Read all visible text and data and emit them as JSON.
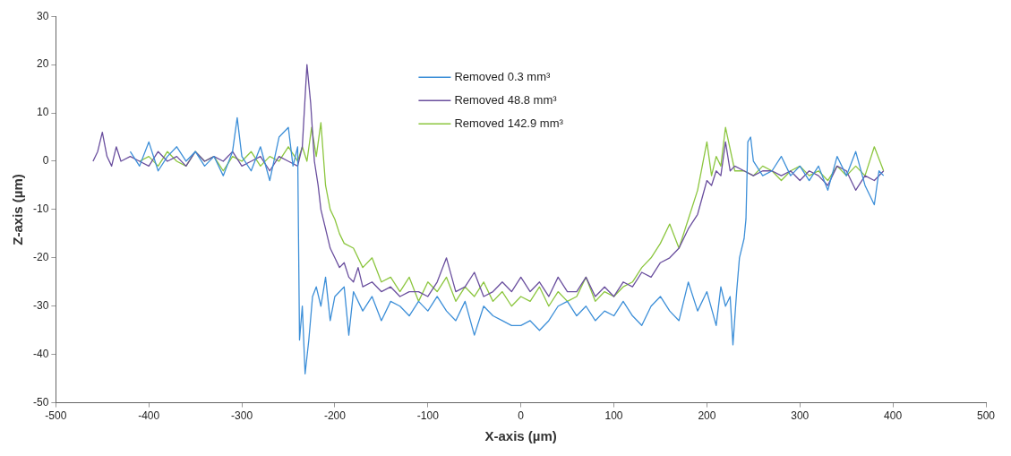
{
  "chart_data": {
    "type": "line",
    "xlabel": "X-axis (µm)",
    "ylabel": "Z-axis (µm)",
    "xlim": [
      -500,
      500
    ],
    "xticks": [
      -500,
      -400,
      -300,
      -200,
      -100,
      0,
      100,
      200,
      300,
      400,
      500
    ],
    "ylim": [
      -50,
      30
    ],
    "yticks": [
      -50,
      -40,
      -30,
      -20,
      -10,
      0,
      10,
      20,
      30
    ],
    "grid": false,
    "legend": "top",
    "marker": "none",
    "line_style": "solid",
    "series": [
      {
        "name": "Removed 0.3 mm³",
        "color": "#3d8fd8",
        "x": [
          -420,
          -410,
          -400,
          -390,
          -380,
          -370,
          -360,
          -350,
          -340,
          -330,
          -320,
          -310,
          -305,
          -300,
          -290,
          -280,
          -270,
          -260,
          -250,
          -245,
          -240,
          -238,
          -235,
          -232,
          -228,
          -224,
          -220,
          -215,
          -210,
          -205,
          -200,
          -190,
          -185,
          -180,
          -170,
          -160,
          -150,
          -140,
          -130,
          -120,
          -110,
          -100,
          -90,
          -80,
          -70,
          -60,
          -50,
          -40,
          -30,
          -20,
          -10,
          0,
          10,
          20,
          30,
          40,
          50,
          60,
          70,
          80,
          90,
          100,
          110,
          120,
          130,
          140,
          150,
          160,
          170,
          180,
          190,
          200,
          210,
          215,
          220,
          225,
          228,
          232,
          235,
          240,
          242,
          244,
          247,
          250,
          260,
          270,
          280,
          290,
          300,
          310,
          320,
          330,
          340,
          350,
          360,
          370,
          380,
          385,
          390
        ],
        "values": [
          2,
          -1,
          4,
          -2,
          1,
          3,
          0,
          2,
          -1,
          1,
          -3,
          2,
          9,
          1,
          -2,
          3,
          -4,
          5,
          7,
          -1,
          3,
          -37,
          -30,
          -44,
          -37,
          -28,
          -26,
          -30,
          -24,
          -33,
          -28,
          -26,
          -36,
          -27,
          -31,
          -28,
          -33,
          -29,
          -30,
          -32,
          -29,
          -31,
          -28,
          -31,
          -33,
          -29,
          -36,
          -30,
          -32,
          -33,
          -34,
          -34,
          -33,
          -35,
          -33,
          -30,
          -29,
          -32,
          -30,
          -33,
          -31,
          -32,
          -29,
          -32,
          -34,
          -30,
          -28,
          -31,
          -33,
          -25,
          -31,
          -27,
          -34,
          -26,
          -30,
          -28,
          -38,
          -27,
          -20,
          -16,
          -12,
          4,
          5,
          0,
          -3,
          -2,
          1,
          -3,
          -1,
          -4,
          -1,
          -6,
          1,
          -3,
          2,
          -5,
          -9,
          -2,
          -3
        ]
      },
      {
        "name": "Removed 48.8 mm³",
        "color": "#6a4f9e",
        "x": [
          -460,
          -455,
          -450,
          -445,
          -440,
          -435,
          -430,
          -420,
          -410,
          -400,
          -390,
          -380,
          -370,
          -360,
          -350,
          -340,
          -330,
          -320,
          -310,
          -300,
          -290,
          -280,
          -270,
          -260,
          -250,
          -240,
          -235,
          -230,
          -226,
          -222,
          -218,
          -215,
          -210,
          -205,
          -200,
          -195,
          -190,
          -185,
          -180,
          -175,
          -170,
          -160,
          -150,
          -140,
          -130,
          -120,
          -110,
          -100,
          -90,
          -80,
          -70,
          -60,
          -50,
          -40,
          -30,
          -20,
          -10,
          0,
          10,
          20,
          30,
          40,
          50,
          60,
          70,
          80,
          90,
          100,
          110,
          120,
          130,
          140,
          150,
          160,
          170,
          180,
          190,
          200,
          205,
          210,
          215,
          220,
          225,
          230,
          240,
          250,
          260,
          270,
          280,
          290,
          300,
          310,
          320,
          330,
          340,
          350,
          360,
          370,
          380,
          390
        ],
        "values": [
          0,
          2,
          6,
          1,
          -1,
          3,
          0,
          1,
          0,
          -1,
          2,
          0,
          1,
          -1,
          2,
          0,
          1,
          0,
          2,
          -1,
          0,
          1,
          -2,
          1,
          0,
          -1,
          3,
          20,
          12,
          0,
          -5,
          -10,
          -14,
          -18,
          -20,
          -22,
          -21,
          -24,
          -25,
          -22,
          -26,
          -25,
          -27,
          -26,
          -28,
          -27,
          -27,
          -28,
          -25,
          -20,
          -27,
          -26,
          -23,
          -28,
          -27,
          -25,
          -27,
          -24,
          -27,
          -25,
          -28,
          -24,
          -27,
          -27,
          -24,
          -28,
          -26,
          -28,
          -25,
          -26,
          -23,
          -24,
          -21,
          -20,
          -18,
          -14,
          -11,
          -4,
          -5,
          -2,
          -3,
          4,
          -2,
          -1,
          -2,
          -3,
          -2,
          -2,
          -3,
          -2,
          -4,
          -2,
          -3,
          -5,
          -1,
          -2,
          -6,
          -3,
          -4,
          -2
        ]
      },
      {
        "name": "Removed 142.9 mm³",
        "color": "#8cc63f",
        "x": [
          -410,
          -400,
          -390,
          -380,
          -370,
          -360,
          -350,
          -340,
          -330,
          -320,
          -310,
          -300,
          -290,
          -280,
          -270,
          -260,
          -250,
          -240,
          -235,
          -230,
          -225,
          -220,
          -215,
          -210,
          -205,
          -200,
          -195,
          -190,
          -180,
          -170,
          -160,
          -150,
          -140,
          -130,
          -120,
          -110,
          -100,
          -90,
          -80,
          -70,
          -60,
          -50,
          -40,
          -30,
          -20,
          -10,
          0,
          10,
          20,
          30,
          40,
          50,
          60,
          70,
          80,
          90,
          100,
          110,
          120,
          130,
          140,
          150,
          160,
          170,
          180,
          190,
          200,
          205,
          210,
          215,
          220,
          230,
          240,
          250,
          260,
          270,
          280,
          290,
          300,
          310,
          320,
          330,
          340,
          350,
          360,
          370,
          380,
          390
        ],
        "values": [
          0,
          1,
          -1,
          2,
          0,
          -1,
          2,
          0,
          1,
          -2,
          1,
          0,
          2,
          -1,
          1,
          0,
          3,
          0,
          3,
          0,
          7,
          1,
          8,
          -5,
          -10,
          -12,
          -15,
          -17,
          -18,
          -22,
          -20,
          -25,
          -24,
          -27,
          -24,
          -29,
          -25,
          -27,
          -24,
          -29,
          -26,
          -28,
          -25,
          -29,
          -27,
          -30,
          -28,
          -29,
          -26,
          -30,
          -27,
          -29,
          -28,
          -24,
          -29,
          -27,
          -28,
          -26,
          -25,
          -22,
          -20,
          -17,
          -13,
          -18,
          -12,
          -6,
          4,
          -3,
          1,
          -1,
          7,
          -2,
          -2,
          -3,
          -1,
          -2,
          -4,
          -2,
          -1,
          -3,
          -2,
          -4,
          -1,
          -3,
          -1,
          -3,
          3,
          -2
        ]
      }
    ]
  }
}
